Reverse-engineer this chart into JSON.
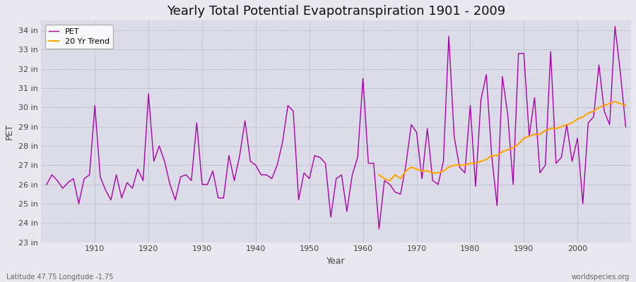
{
  "title": "Yearly Total Potential Evapotranspiration 1901 - 2009",
  "xlabel": "Year",
  "ylabel": "PET",
  "subtitle_left": "Latitude 47.75 Longitude -1.75",
  "subtitle_right": "worldspecies.org",
  "pet_color": "#AA00AA",
  "trend_color": "#FFA500",
  "fig_bg_color": "#E8E8EE",
  "ax_bg_color": "#DCDCE8",
  "ylim": [
    23,
    34.5
  ],
  "ytick_labels": [
    "23 in",
    "24 in",
    "25 in",
    "26 in",
    "27 in",
    "28 in",
    "29 in",
    "30 in",
    "31 in",
    "32 in",
    "33 in",
    "34 in"
  ],
  "ytick_values": [
    23,
    24,
    25,
    26,
    27,
    28,
    29,
    30,
    31,
    32,
    33,
    34
  ],
  "xlim": [
    1900,
    2010
  ],
  "xticks": [
    1910,
    1920,
    1930,
    1940,
    1950,
    1960,
    1970,
    1980,
    1990,
    2000
  ],
  "years": [
    1901,
    1902,
    1903,
    1904,
    1905,
    1906,
    1907,
    1908,
    1909,
    1910,
    1911,
    1912,
    1913,
    1914,
    1915,
    1916,
    1917,
    1918,
    1919,
    1920,
    1921,
    1922,
    1923,
    1924,
    1925,
    1926,
    1927,
    1928,
    1929,
    1930,
    1931,
    1932,
    1933,
    1934,
    1935,
    1936,
    1937,
    1938,
    1939,
    1940,
    1941,
    1942,
    1943,
    1944,
    1945,
    1946,
    1947,
    1948,
    1949,
    1950,
    1951,
    1952,
    1953,
    1954,
    1955,
    1956,
    1957,
    1958,
    1959,
    1960,
    1961,
    1962,
    1963,
    1964,
    1965,
    1966,
    1967,
    1968,
    1969,
    1970,
    1971,
    1972,
    1973,
    1974,
    1975,
    1976,
    1977,
    1978,
    1979,
    1980,
    1981,
    1982,
    1983,
    1984,
    1985,
    1986,
    1987,
    1988,
    1989,
    1990,
    1991,
    1992,
    1993,
    1994,
    1995,
    1996,
    1997,
    1998,
    1999,
    2000,
    2001,
    2002,
    2003,
    2004,
    2005,
    2006,
    2007,
    2008,
    2009
  ],
  "pet_values": [
    26.0,
    26.5,
    26.2,
    25.8,
    26.1,
    26.3,
    25.0,
    26.3,
    26.5,
    30.1,
    26.4,
    25.7,
    25.2,
    26.5,
    25.3,
    26.1,
    25.8,
    26.8,
    26.2,
    30.7,
    27.2,
    28.0,
    27.2,
    26.0,
    25.2,
    26.4,
    26.5,
    26.2,
    29.2,
    26.0,
    26.0,
    26.7,
    25.3,
    25.3,
    27.5,
    26.2,
    27.5,
    29.3,
    27.2,
    27.0,
    26.5,
    26.5,
    26.3,
    27.0,
    28.2,
    30.1,
    29.8,
    25.2,
    26.6,
    26.3,
    27.5,
    27.4,
    27.1,
    24.3,
    26.3,
    26.5,
    24.6,
    26.5,
    27.4,
    31.5,
    27.1,
    27.1,
    23.7,
    26.2,
    26.0,
    25.6,
    25.5,
    27.0,
    29.1,
    28.7,
    26.3,
    28.9,
    26.2,
    26.0,
    27.2,
    33.7,
    28.5,
    26.9,
    26.6,
    30.1,
    25.9,
    30.4,
    31.7,
    27.5,
    24.9,
    31.6,
    29.6,
    26.0,
    32.8,
    32.8,
    28.5,
    30.5,
    26.6,
    27.0,
    32.9,
    27.1,
    27.4,
    29.1,
    27.2,
    28.4,
    25.0,
    29.2,
    29.5,
    32.2,
    29.8,
    29.1,
    34.2,
    31.8,
    29.0
  ],
  "trend_values_years": [
    1963,
    1964,
    1965,
    1966,
    1967,
    1968,
    1969,
    1970,
    1971,
    1972,
    1973,
    1974,
    1975,
    1976,
    1977,
    1978,
    1979,
    1980,
    1981,
    1982,
    1983,
    1984,
    1985,
    1986,
    1987,
    1988,
    1989,
    1990,
    1991,
    1992,
    1993,
    1994,
    1995,
    1996,
    1997,
    1998,
    1999,
    2000,
    2001,
    2002,
    2003,
    2004,
    2005,
    2006,
    2007,
    2008,
    2009
  ],
  "trend_values": [
    26.5,
    26.3,
    26.2,
    26.5,
    26.3,
    26.7,
    26.9,
    26.8,
    26.7,
    26.7,
    26.6,
    26.6,
    26.7,
    26.9,
    27.0,
    27.0,
    27.0,
    27.1,
    27.1,
    27.2,
    27.3,
    27.5,
    27.5,
    27.7,
    27.8,
    27.9,
    28.1,
    28.4,
    28.5,
    28.6,
    28.6,
    28.8,
    28.9,
    28.9,
    29.0,
    29.1,
    29.2,
    29.4,
    29.5,
    29.7,
    29.8,
    30.0,
    30.1,
    30.2,
    30.3,
    30.2,
    30.1
  ],
  "title_fontsize": 13,
  "axis_label_fontsize": 9,
  "tick_fontsize": 8,
  "legend_fontsize": 8,
  "annotation_fontsize": 7,
  "linewidth_pet": 1.0,
  "linewidth_trend": 1.5
}
